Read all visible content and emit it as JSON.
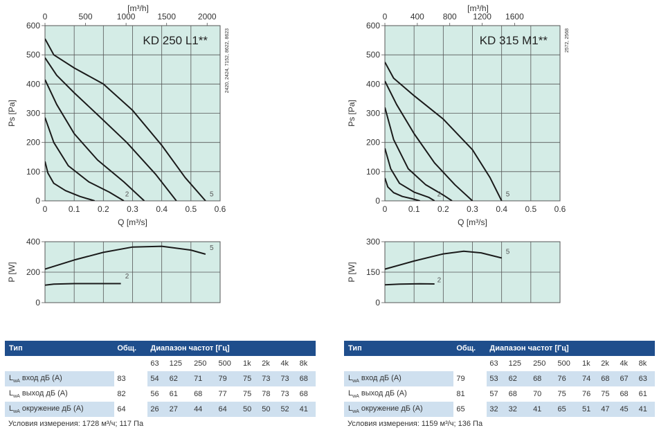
{
  "charts": [
    {
      "name": "KD 250 L1",
      "title": "KD 250 L1**",
      "side_note": "2420, 2424, 7152, 8622, 8623",
      "pressure_chart": {
        "type": "line",
        "xlabel": "Q [m³/s]",
        "ylabel": "Ps [Pa]",
        "top_axis_label": "[m³/h]",
        "xlim": [
          0,
          0.6
        ],
        "ylim": [
          0,
          600
        ],
        "x_ticks": [
          "0",
          "0.1",
          "0.2",
          "0.3",
          "0.4",
          "0.5",
          "0.6"
        ],
        "y_ticks": [
          "0",
          "100",
          "200",
          "300",
          "400",
          "500",
          "600"
        ],
        "top_ticks": [
          "0",
          "500",
          "1000",
          "1500",
          "2000"
        ],
        "curve_labels": [
          {
            "text": "2",
            "x": 0.265,
            "y": 15
          },
          {
            "text": "5",
            "x": 0.555,
            "y": 15
          }
        ],
        "series": [
          {
            "x": [
              0,
              0.01,
              0.03,
              0.07,
              0.12,
              0.17
            ],
            "y": [
              135,
              95,
              60,
              35,
              15,
              0
            ]
          },
          {
            "x": [
              0,
              0.03,
              0.08,
              0.15,
              0.22,
              0.27
            ],
            "y": [
              285,
              200,
              120,
              65,
              30,
              0
            ]
          },
          {
            "x": [
              0,
              0.04,
              0.1,
              0.18,
              0.27,
              0.34
            ],
            "y": [
              415,
              330,
              230,
              140,
              65,
              0
            ]
          },
          {
            "x": [
              0,
              0.04,
              0.1,
              0.18,
              0.28,
              0.38,
              0.45
            ],
            "y": [
              490,
              430,
              370,
              295,
              200,
              90,
              0
            ]
          },
          {
            "x": [
              0,
              0.03,
              0.1,
              0.2,
              0.3,
              0.4,
              0.48,
              0.55
            ],
            "y": [
              555,
              500,
              455,
              400,
              310,
              190,
              80,
              0
            ]
          }
        ]
      },
      "power_chart": {
        "type": "line",
        "ylabel": "P [W]",
        "xlim": [
          0,
          0.6
        ],
        "ylim": [
          0,
          400
        ],
        "y_ticks": [
          "0",
          "200",
          "400"
        ],
        "curve_labels": [
          {
            "text": "5",
            "x": 0.555,
            "y": 345
          },
          {
            "text": "2",
            "x": 0.265,
            "y": 160
          }
        ],
        "series": [
          {
            "x": [
              0,
              0.1,
              0.2,
              0.3,
              0.4,
              0.5,
              0.55
            ],
            "y": [
              220,
              280,
              330,
              365,
              370,
              345,
              318
            ]
          },
          {
            "x": [
              0,
              0.03,
              0.1,
              0.2,
              0.26
            ],
            "y": [
              115,
              122,
              125,
              125,
              125
            ]
          }
        ]
      }
    },
    {
      "name": "KD 315 M1",
      "title": "KD 315 M1**",
      "side_note": "2572, 2568",
      "pressure_chart": {
        "type": "line",
        "xlabel": "Q [m³/s]",
        "ylabel": "Ps [Pa]",
        "top_axis_label": "[m³/h]",
        "xlim": [
          0,
          0.6
        ],
        "ylim": [
          0,
          600
        ],
        "x_ticks": [
          "0",
          "0.1",
          "0.2",
          "0.3",
          "0.4",
          "0.5",
          "0.6"
        ],
        "y_ticks": [
          "0",
          "100",
          "200",
          "300",
          "400",
          "500",
          "600"
        ],
        "top_ticks": [
          "0",
          "400",
          "800",
          "1200",
          "1600"
        ],
        "curve_labels": [
          {
            "text": "2",
            "x": 0.17,
            "y": 15
          },
          {
            "text": "5",
            "x": 0.405,
            "y": 15
          }
        ],
        "series": [
          {
            "x": [
              0,
              0.01,
              0.03,
              0.06,
              0.09,
              0.12
            ],
            "y": [
              78,
              48,
              28,
              15,
              8,
              0
            ]
          },
          {
            "x": [
              0,
              0.02,
              0.05,
              0.1,
              0.15,
              0.17
            ],
            "y": [
              180,
              110,
              60,
              30,
              12,
              0
            ]
          },
          {
            "x": [
              0,
              0.03,
              0.08,
              0.14,
              0.2,
              0.23
            ],
            "y": [
              320,
              210,
              110,
              55,
              20,
              0
            ]
          },
          {
            "x": [
              0,
              0.04,
              0.1,
              0.17,
              0.24,
              0.3
            ],
            "y": [
              410,
              330,
              230,
              130,
              55,
              0
            ]
          },
          {
            "x": [
              0,
              0.03,
              0.1,
              0.2,
              0.3,
              0.36,
              0.4
            ],
            "y": [
              475,
              420,
              360,
              280,
              175,
              80,
              0
            ]
          }
        ]
      },
      "power_chart": {
        "type": "line",
        "ylabel": "P [W]",
        "xlim": [
          0,
          0.6
        ],
        "ylim": [
          0,
          300
        ],
        "y_ticks": [
          "0",
          "150",
          "300"
        ],
        "curve_labels": [
          {
            "text": "5",
            "x": 0.405,
            "y": 240
          },
          {
            "text": "2",
            "x": 0.17,
            "y": 100
          }
        ],
        "series": [
          {
            "x": [
              0,
              0.1,
              0.2,
              0.27,
              0.33,
              0.4
            ],
            "y": [
              165,
              205,
              240,
              253,
              245,
              220
            ]
          },
          {
            "x": [
              0,
              0.05,
              0.12,
              0.17
            ],
            "y": [
              88,
              91,
              93,
              92
            ]
          }
        ]
      }
    }
  ],
  "tables": [
    {
      "hdr_type": "Тип",
      "hdr_total": "Общ.",
      "hdr_range": "Диапазон частот [Гц]",
      "freqs": [
        "63",
        "125",
        "250",
        "500",
        "1k",
        "2k",
        "4k",
        "8k"
      ],
      "rows": [
        {
          "label": "вход дБ (А)",
          "total": "83",
          "values": [
            "54",
            "62",
            "71",
            "79",
            "75",
            "73",
            "73",
            "68"
          ]
        },
        {
          "label": "выход дБ (А)",
          "total": "82",
          "values": [
            "56",
            "61",
            "68",
            "77",
            "75",
            "78",
            "73",
            "68"
          ]
        },
        {
          "label": "окружение дБ (А)",
          "total": "64",
          "values": [
            "26",
            "27",
            "44",
            "64",
            "50",
            "50",
            "52",
            "41"
          ]
        }
      ],
      "conditions": "Условия измерения: 1728 м³/ч; 117 Па"
    },
    {
      "hdr_type": "Тип",
      "hdr_total": "Общ.",
      "hdr_range": "Диапазон частот [Гц]",
      "freqs": [
        "63",
        "125",
        "250",
        "500",
        "1k",
        "2k",
        "4k",
        "8k"
      ],
      "rows": [
        {
          "label": "вход дБ (А)",
          "total": "79",
          "values": [
            "53",
            "62",
            "68",
            "76",
            "74",
            "68",
            "67",
            "63"
          ]
        },
        {
          "label": "выход дБ (А)",
          "total": "81",
          "values": [
            "57",
            "68",
            "70",
            "75",
            "76",
            "75",
            "68",
            "61"
          ]
        },
        {
          "label": "окружение дБ (А)",
          "total": "65",
          "values": [
            "32",
            "32",
            "41",
            "65",
            "51",
            "47",
            "45",
            "41"
          ]
        }
      ],
      "conditions": "Условия измерения: 1159 м³/ч; 136 Па"
    }
  ],
  "lwa_prefix": "L",
  "lwa_sub": "wA",
  "colors": {
    "plot_bg": "#d4ece6",
    "grid": "#555555",
    "curve": "#1a1a1a",
    "header_bg": "#1f4e8c",
    "row_shade": "#cfe0ef"
  }
}
